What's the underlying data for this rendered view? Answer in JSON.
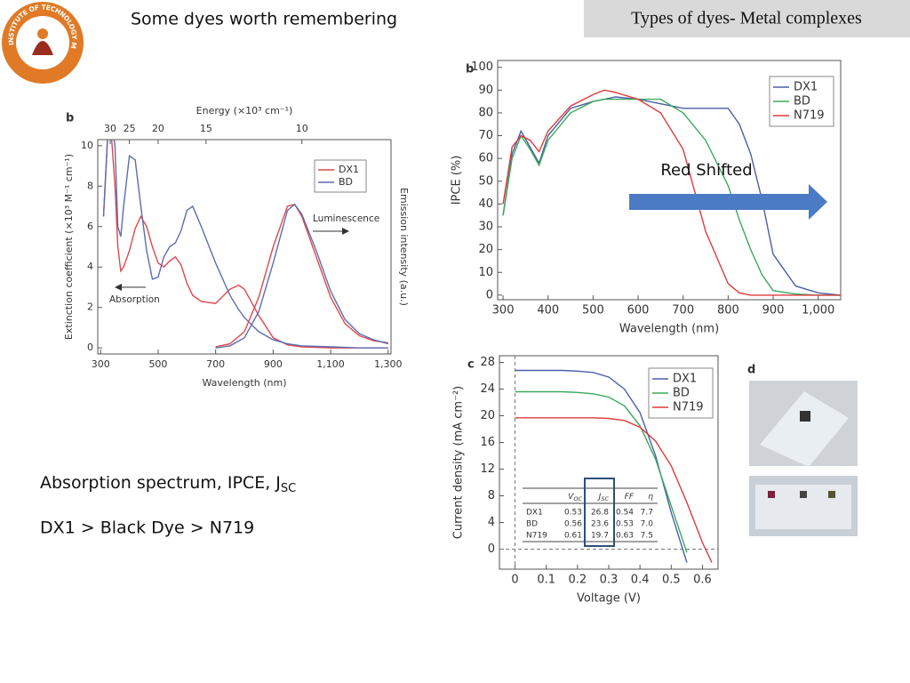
{
  "header": {
    "title": "Some dyes worth remembering",
    "section": "Types of dyes- Metal complexes"
  },
  "logo": {
    "text": "INDIAN INSTITUTE OF TECHNOLOGY MADRAS"
  },
  "notes": {
    "line1": {
      "text": "Absorption spectrum, IPCE, J",
      "sub": "SC"
    },
    "line2": "DX1 > Black Dye > N719"
  },
  "photo": {
    "panel": "d"
  },
  "chart_data": [
    {
      "type": "line",
      "panel": "b",
      "x_label": "Wavelength (nm)",
      "y_label": "Extinction coefficient (×10³ M⁻¹ cm⁻¹)",
      "y2_label": "Emission intensity (a.u.)",
      "x2_label": "Energy (×10³ cm⁻¹)",
      "xlim": [
        290,
        1310
      ],
      "xticks": [
        300,
        500,
        700,
        900,
        {
          "value": 1100,
          "label": "1,100"
        },
        {
          "value": 1300,
          "label": "1,300"
        }
      ],
      "ylim": [
        -0.3,
        10.3
      ],
      "yticks": [
        0,
        2,
        4,
        6,
        8,
        10
      ],
      "x2ticks": [
        30,
        25,
        20,
        15,
        10
      ],
      "annotations": [
        "Luminescence",
        "Absorption"
      ],
      "x": [
        310,
        330,
        350,
        360,
        370,
        380,
        400,
        420,
        440,
        460,
        480,
        500,
        520,
        540,
        560,
        580,
        600,
        620,
        650,
        700,
        750,
        780,
        800,
        850,
        900,
        950,
        1000,
        1100,
        1200,
        1300
      ],
      "series": [
        {
          "name": "DX1",
          "color": "#e0474c",
          "values": [
            6.5,
            12,
            8,
            5,
            3.8,
            4.0,
            4.8,
            5.9,
            6.5,
            6.0,
            5.0,
            4.2,
            4.0,
            4.3,
            4.5,
            4.1,
            3.2,
            2.6,
            2.3,
            2.2,
            2.9,
            3.1,
            2.9,
            1.6,
            0.5,
            0.15,
            0.05,
            0,
            0,
            0
          ]
        },
        {
          "name": "BD",
          "color": "#5a6eb0",
          "values": [
            6.5,
            12,
            10,
            6,
            5.5,
            7,
            9.5,
            9.3,
            7,
            4.8,
            3.4,
            3.5,
            4.5,
            5,
            5.2,
            5.8,
            6.8,
            7.0,
            6.0,
            4.2,
            2.6,
            1.9,
            1.5,
            0.8,
            0.4,
            0.2,
            0.1,
            0.05,
            0,
            0
          ]
        },
        {
          "color": "#e0474c",
          "x": [
            700,
            750,
            800,
            850,
            900,
            950,
            975,
            1000,
            1050,
            1100,
            1150,
            1200,
            1250,
            1300
          ],
          "values": [
            0.05,
            0.2,
            0.8,
            2.5,
            5.0,
            7.0,
            7.1,
            6.5,
            4.5,
            2.5,
            1.2,
            0.6,
            0.35,
            0.25
          ]
        },
        {
          "color": "#5a6eb0",
          "x": [
            700,
            750,
            800,
            850,
            900,
            950,
            975,
            1000,
            1050,
            1100,
            1150,
            1200,
            1250,
            1300
          ],
          "values": [
            0,
            0.1,
            0.5,
            1.8,
            4.2,
            6.8,
            7.1,
            6.6,
            4.8,
            2.8,
            1.4,
            0.7,
            0.4,
            0.2
          ]
        }
      ]
    },
    {
      "type": "line",
      "panel": "b",
      "x_label": "Wavelength (nm)",
      "y_label": "IPCE  (%)",
      "annotations": [
        "Red Shifted"
      ],
      "xlim": [
        288,
        1050
      ],
      "xticks": [
        300,
        400,
        500,
        600,
        700,
        800,
        900,
        {
          "value": 1000,
          "label": "1,000"
        }
      ],
      "ylim": [
        -2,
        103
      ],
      "yticks": [
        0,
        10,
        20,
        30,
        40,
        50,
        60,
        70,
        80,
        90,
        100
      ],
      "x": [
        300,
        320,
        340,
        360,
        380,
        400,
        450,
        500,
        525,
        550,
        600,
        650,
        700,
        750,
        800,
        825,
        850,
        875,
        900,
        950,
        1000,
        1050
      ],
      "series": [
        {
          "name": "DX1",
          "color": "#4a5fa8",
          "values": [
            35,
            62,
            72,
            65,
            58,
            70,
            82,
            85,
            86,
            87,
            86,
            84,
            82,
            82,
            82,
            75,
            62,
            42,
            18,
            4,
            1,
            0
          ]
        },
        {
          "name": "BD",
          "color": "#3aaa5a",
          "values": [
            35,
            60,
            70,
            64,
            57,
            68,
            80,
            85,
            86,
            86,
            86,
            86,
            80,
            68,
            48,
            33,
            20,
            9,
            2,
            0.5,
            0,
            0
          ]
        },
        {
          "name": "N719",
          "color": "#e03a3a",
          "values": [
            40,
            65,
            70,
            68,
            63,
            72,
            83,
            88,
            90,
            89,
            86,
            80,
            64,
            28,
            5,
            1,
            0,
            0,
            0,
            0,
            0,
            0
          ]
        }
      ]
    },
    {
      "type": "line",
      "panel": "c",
      "x_label": "Voltage (V)",
      "y_label": "Current density (mA cm⁻²)",
      "xlim": [
        -0.05,
        0.65
      ],
      "xticks": [
        0.0,
        0.1,
        0.2,
        0.3,
        0.4,
        0.5,
        0.6
      ],
      "ylim": [
        -3,
        29
      ],
      "yticks": [
        0,
        4,
        8,
        12,
        16,
        20,
        24,
        28
      ],
      "x": [
        0,
        0.05,
        0.1,
        0.15,
        0.2,
        0.25,
        0.3,
        0.35,
        0.4,
        0.45,
        0.5,
        0.55,
        0.6,
        0.63
      ],
      "series": [
        {
          "name": "DX1",
          "color": "#4a5fa8",
          "values": [
            26.8,
            26.8,
            26.8,
            26.8,
            26.7,
            26.5,
            25.8,
            24,
            20.5,
            14,
            5.5,
            -2,
            null,
            null
          ]
        },
        {
          "name": "BD",
          "color": "#3aaa5a",
          "values": [
            23.6,
            23.6,
            23.6,
            23.6,
            23.5,
            23.3,
            22.8,
            21.5,
            18.5,
            13.5,
            6.5,
            -0.5,
            null,
            null
          ]
        },
        {
          "name": "N719",
          "color": "#e03a3a",
          "values": [
            19.7,
            19.7,
            19.7,
            19.7,
            19.7,
            19.7,
            19.6,
            19.3,
            18.3,
            16.2,
            12.5,
            7,
            1,
            -2
          ]
        }
      ],
      "table": {
        "header": [
          [
            "V",
            "OC"
          ],
          [
            "J",
            "SC"
          ],
          [
            "FF"
          ],
          [
            "η"
          ]
        ],
        "rows": [
          [
            "DX1",
            "0.53",
            "26.8",
            "0.54",
            "7.7"
          ],
          [
            "BD",
            "0.56",
            "23.6",
            "0.53",
            "7.0"
          ],
          [
            "N719",
            "0.61",
            "19.7",
            "0.63",
            "7.5"
          ]
        ]
      }
    }
  ]
}
